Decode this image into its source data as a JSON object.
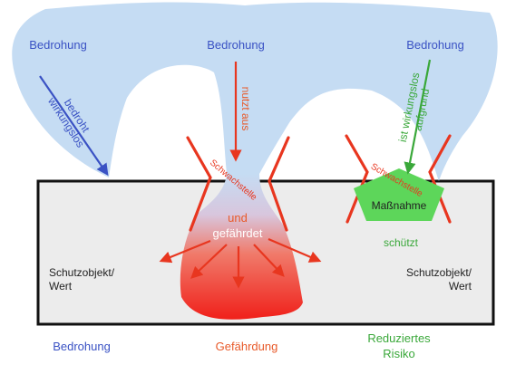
{
  "colors": {
    "threat_fill": "#c5dcf3",
    "threat_text": "#3a52c4",
    "danger": "#e8361f",
    "danger_text": "#e85a2a",
    "protect": "#4ec84a",
    "protect_text": "#3aa83a",
    "box_fill": "#ececec",
    "box_border": "#111111",
    "text_dark": "#222222"
  },
  "threats": {
    "left": "Bedrohung",
    "middle": "Bedrohung",
    "right": "Bedrohung"
  },
  "arrows": {
    "left_line1": "bedroht",
    "left_line2": "wirkungslos",
    "middle": "nutzt aus",
    "right_line1": "ist wirkungslos",
    "right_line2": "aufgrund"
  },
  "weakness": {
    "middle": "Schwachstelle",
    "right": "Schwachstelle"
  },
  "danger": {
    "line1": "und",
    "line2": "gefährdet"
  },
  "measure": {
    "label": "Maßnahme",
    "protects": "schützt"
  },
  "assets": {
    "left_line1": "Schutzobjekt/",
    "left_line2": "Wert",
    "right_line1": "Schutzobjekt/",
    "right_line2": "Wert"
  },
  "footer": {
    "threat": "Bedrohung",
    "danger": "Gefährdung",
    "risk_line1": "Reduziertes",
    "risk_line2": "Risiko"
  }
}
